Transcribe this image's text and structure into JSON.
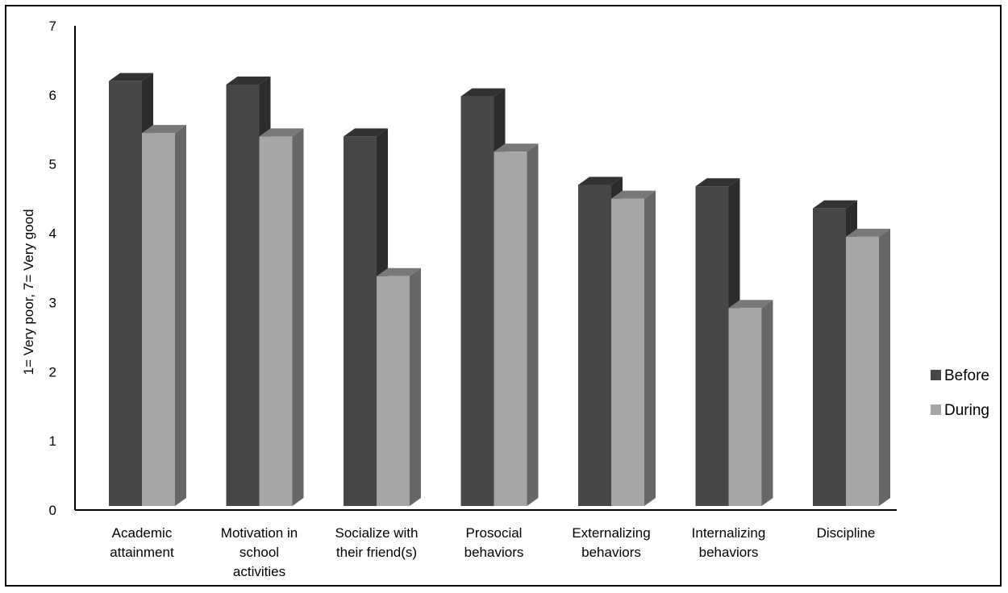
{
  "chart_data": {
    "type": "bar",
    "title": "",
    "xlabel": "",
    "ylabel": "1= Very poor, 7= Very good",
    "ylim": [
      0,
      7
    ],
    "yticks": [
      0,
      1,
      2,
      3,
      4,
      5,
      6,
      7
    ],
    "grid": false,
    "legend_position": "right",
    "categories": [
      [
        "Academic",
        "attainment"
      ],
      [
        "Motivation in",
        "school",
        "activities"
      ],
      [
        "Socialize with",
        "their friend(s)"
      ],
      [
        "Prosocial",
        "behaviors"
      ],
      [
        "Externalizing",
        "behaviors"
      ],
      [
        "Internalizing",
        "behaviors"
      ],
      [
        "Discipline"
      ]
    ],
    "series": [
      {
        "name": "Before",
        "color": "#474747",
        "values": [
          6.2,
          6.15,
          5.4,
          5.98,
          4.7,
          4.68,
          4.36
        ]
      },
      {
        "name": "During",
        "color": "#a6a6a6",
        "values": [
          5.45,
          5.4,
          3.38,
          5.18,
          4.5,
          2.92,
          3.95
        ]
      }
    ]
  }
}
